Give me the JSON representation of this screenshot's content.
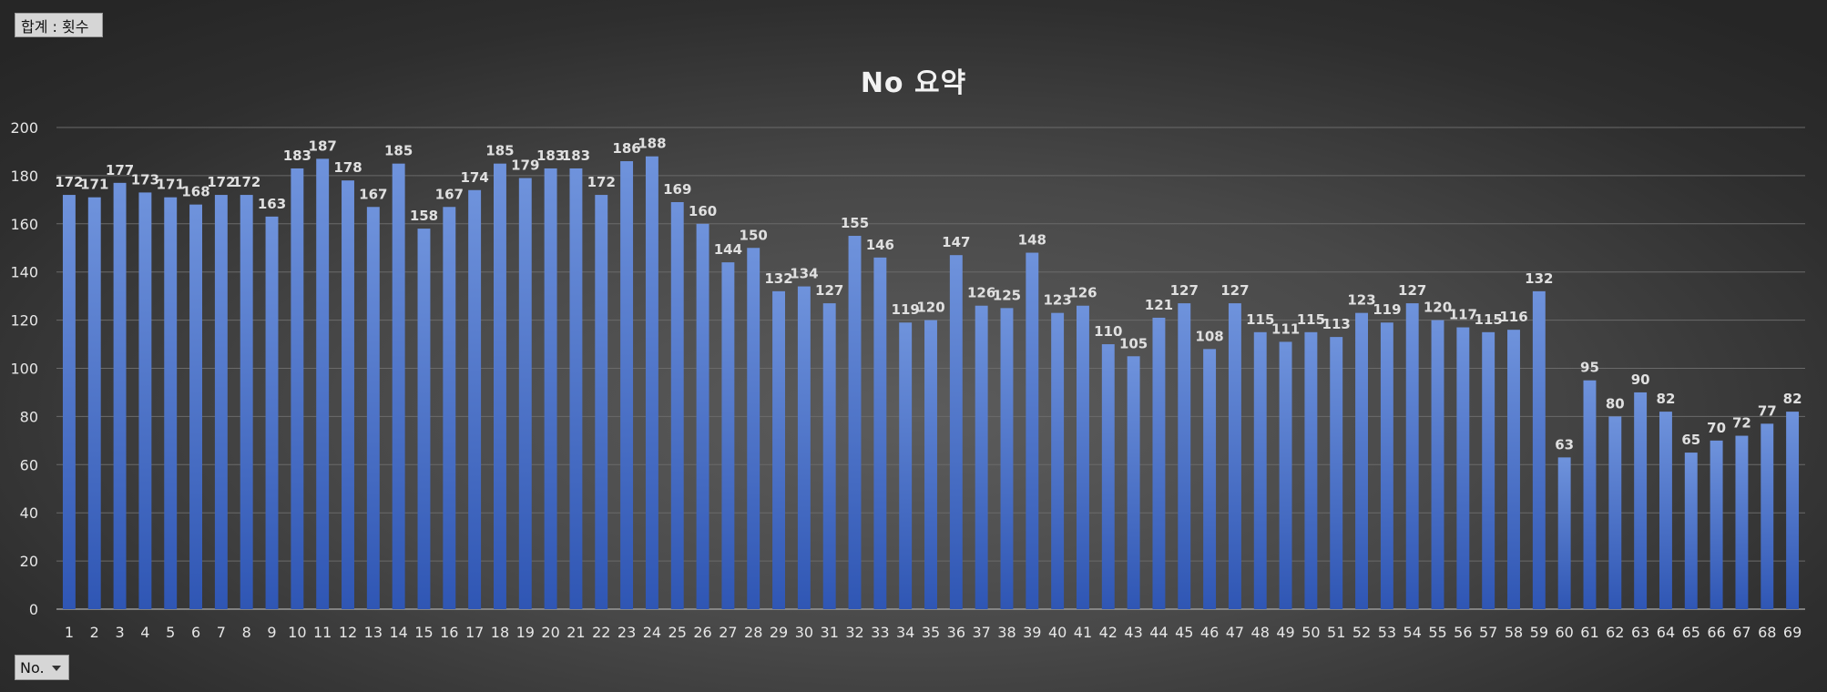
{
  "pivot": {
    "value_field_label": "합계 : 횟수",
    "axis_field_label": "No."
  },
  "colors": {
    "bar_light": "#6f93dc",
    "bar_dark": "#2f56b4"
  },
  "chart_data": {
    "type": "bar",
    "title": "No 요약",
    "xlabel": "",
    "ylabel": "",
    "ylim": [
      0,
      200
    ],
    "yticks": [
      0,
      20,
      40,
      60,
      80,
      100,
      120,
      140,
      160,
      180,
      200
    ],
    "grid": true,
    "legend": "none",
    "categories": [
      "1",
      "2",
      "3",
      "4",
      "5",
      "6",
      "7",
      "8",
      "9",
      "10",
      "11",
      "12",
      "13",
      "14",
      "15",
      "16",
      "17",
      "18",
      "19",
      "20",
      "21",
      "22",
      "23",
      "24",
      "25",
      "26",
      "27",
      "28",
      "29",
      "30",
      "31",
      "32",
      "33",
      "34",
      "35",
      "36",
      "37",
      "38",
      "39",
      "40",
      "41",
      "42",
      "43",
      "44",
      "45",
      "46",
      "47",
      "48",
      "49",
      "50",
      "51",
      "52",
      "53",
      "54",
      "55",
      "56",
      "57",
      "58",
      "59",
      "60",
      "61",
      "62",
      "63",
      "64",
      "65",
      "66",
      "67",
      "68",
      "69"
    ],
    "values": [
      172,
      171,
      177,
      173,
      171,
      168,
      172,
      172,
      163,
      183,
      187,
      178,
      167,
      185,
      158,
      167,
      174,
      185,
      179,
      183,
      183,
      172,
      186,
      188,
      169,
      160,
      144,
      150,
      132,
      134,
      127,
      155,
      146,
      119,
      120,
      147,
      126,
      125,
      148,
      123,
      126,
      110,
      105,
      121,
      127,
      108,
      127,
      115,
      111,
      115,
      113,
      123,
      119,
      127,
      120,
      117,
      115,
      116,
      132,
      63,
      95,
      80,
      90,
      82,
      65,
      70,
      72,
      77,
      82
    ]
  }
}
